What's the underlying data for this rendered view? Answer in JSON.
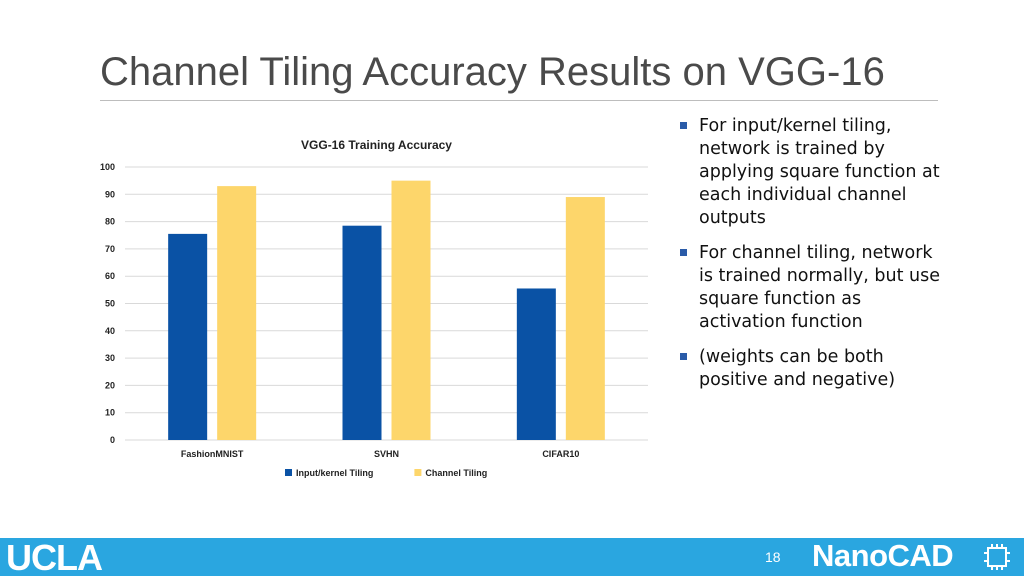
{
  "slide": {
    "title": "Channel Tiling Accuracy Results on VGG-16",
    "page_number": "18"
  },
  "bullets": [
    "For input/kernel tiling, network is trained by applying square function at each individual channel outputs",
    "For channel tiling, network is trained normally, but use square function as activation function",
    "(weights can be both positive and negative)"
  ],
  "footer": {
    "left_logo": "UCLA",
    "right_logo": "NanoCAD",
    "bar_color": "#2aa6e0"
  },
  "chart_data": {
    "type": "bar",
    "title": "VGG-16 Training Accuracy",
    "categories": [
      "FashionMNIST",
      "SVHN",
      "CIFAR10"
    ],
    "series": [
      {
        "name": "Input/kernel Tiling",
        "color": "#0a52a5",
        "values": [
          75.5,
          78.5,
          55.5
        ]
      },
      {
        "name": "Channel Tiling",
        "color": "#fdd66b",
        "values": [
          93,
          95,
          89
        ]
      }
    ],
    "ylim": [
      0,
      100
    ],
    "yticks": [
      0,
      10,
      20,
      30,
      40,
      50,
      60,
      70,
      80,
      90,
      100
    ],
    "grid": true,
    "legend_position": "bottom"
  }
}
